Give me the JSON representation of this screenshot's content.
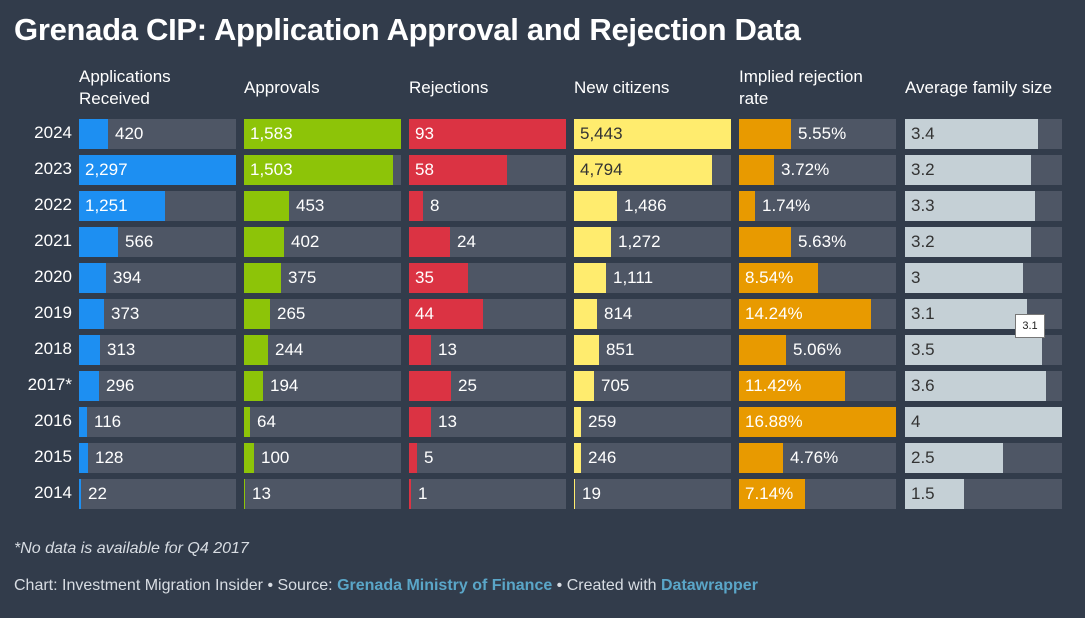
{
  "title": "Grenada CIP: Application Approval and Rejection Data",
  "footnote": "*No data is available for Q4 2017",
  "credits": {
    "prefix": "Chart: Investment Migration Insider • Source: ",
    "source_link": "Grenada Ministry of Finance",
    "middle": " • Created with ",
    "tool_link": "Datawrapper"
  },
  "tooltip": "3.1",
  "chart_data": {
    "type": "table",
    "years": [
      "2024",
      "2023",
      "2022",
      "2021",
      "2020",
      "2019",
      "2018",
      "2017*",
      "2016",
      "2015",
      "2014"
    ],
    "columns": [
      {
        "key": "applications",
        "header": "Applications Received",
        "color": "#1d8ff2",
        "max": 2297,
        "values": [
          420,
          2297,
          1251,
          566,
          394,
          373,
          313,
          296,
          116,
          128,
          22
        ],
        "labels": [
          "420",
          "2,297",
          "1,251",
          "566",
          "394",
          "373",
          "313",
          "296",
          "116",
          "128",
          "22"
        ]
      },
      {
        "key": "approvals",
        "header": "Approvals",
        "color": "#8dc408",
        "max": 1583,
        "values": [
          1583,
          1503,
          453,
          402,
          375,
          265,
          244,
          194,
          64,
          100,
          13
        ],
        "labels": [
          "1,583",
          "1,503",
          "453",
          "402",
          "375",
          "265",
          "244",
          "194",
          "64",
          "100",
          "13"
        ]
      },
      {
        "key": "rejections",
        "header": "Rejections",
        "color": "#db3343",
        "max": 93,
        "values": [
          93,
          58,
          8,
          24,
          35,
          44,
          13,
          25,
          13,
          5,
          1
        ],
        "labels": [
          "93",
          "58",
          "8",
          "24",
          "35",
          "44",
          "13",
          "25",
          "13",
          "5",
          "1"
        ]
      },
      {
        "key": "new_citizens",
        "header": "New citizens",
        "color": "#ffec6e",
        "max": 5443,
        "values": [
          5443,
          4794,
          1486,
          1272,
          1111,
          814,
          851,
          705,
          259,
          246,
          19
        ],
        "labels": [
          "5,443",
          "4,794",
          "1,486",
          "1,272",
          "1,111",
          "814",
          "851",
          "705",
          "259",
          "246",
          "19"
        ]
      },
      {
        "key": "rejection_rate",
        "header": "Implied rejection rate",
        "color": "#e89a00",
        "max": 16.88,
        "values": [
          5.55,
          3.72,
          1.74,
          5.63,
          8.54,
          14.24,
          5.06,
          11.42,
          16.88,
          4.76,
          7.14
        ],
        "labels": [
          "5.55%",
          "3.72%",
          "1.74%",
          "5.63%",
          "8.54%",
          "14.24%",
          "5.06%",
          "11.42%",
          "16.88%",
          "4.76%",
          "7.14%"
        ]
      },
      {
        "key": "family_size",
        "header": "Average family size",
        "color": "#c5d0d6",
        "max": 4,
        "values": [
          3.4,
          3.2,
          3.3,
          3.2,
          3.0,
          3.1,
          3.5,
          3.6,
          4.0,
          2.5,
          1.5
        ],
        "labels": [
          "3.4",
          "3.2",
          "3.3",
          "3.2",
          "3",
          "3.1",
          "3.5",
          "3.6",
          "4",
          "2.5",
          "1.5"
        ]
      }
    ]
  }
}
